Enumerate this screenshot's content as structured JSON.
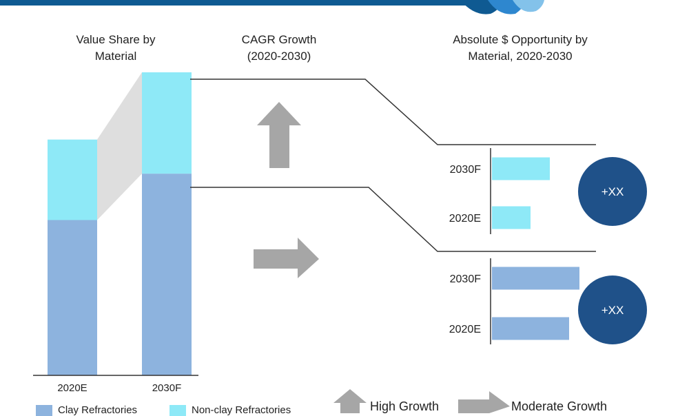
{
  "titles": {
    "value_share": "Value Share by\nMaterial",
    "cagr": "CAGR Growth\n(2020-2030)",
    "opportunity": "Absolute $ Opportunity by\nMaterial, 2020-2030"
  },
  "colors": {
    "clay": "#8db3de",
    "non_clay": "#8ee9f7",
    "circle": "#1f5189",
    "arrow": "#a6a6a6",
    "connector": "#dedede",
    "header": "#0f5a92"
  },
  "legend": {
    "clay_label": "Clay Refractories",
    "non_clay_label": "Non-clay Refractories",
    "high_growth": "High Growth",
    "moderate_growth": "Moderate Growth"
  },
  "chart_data": [
    {
      "type": "bar",
      "orientation": "vertical",
      "stacked": true,
      "title": "Value Share by Material",
      "categories": [
        "2020E",
        "2030F"
      ],
      "series": [
        {
          "name": "Clay Refractories",
          "values": [
            3.28,
            4.26
          ]
        },
        {
          "name": "Non-clay Refractories",
          "values": [
            1.7,
            2.14
          ]
        }
      ],
      "ylim": [
        0,
        6.4
      ],
      "grid": false,
      "legend_position": "bottom"
    },
    {
      "type": "bar",
      "orientation": "horizontal",
      "title": "Absolute $ Opportunity by Material, 2020-2030",
      "segment": "Non-clay Refractories",
      "categories": [
        "2030F",
        "2020E"
      ],
      "values": [
        84,
        56
      ],
      "xlim": [
        0,
        130
      ],
      "badge": "+XX",
      "cagr_indicator": "High Growth"
    },
    {
      "type": "bar",
      "orientation": "horizontal",
      "segment": "Clay Refractories",
      "categories": [
        "2030F",
        "2020E"
      ],
      "values": [
        127,
        112
      ],
      "xlim": [
        0,
        130
      ],
      "badge": "+XX",
      "cagr_indicator": "Moderate Growth"
    }
  ]
}
